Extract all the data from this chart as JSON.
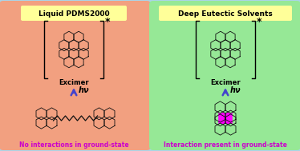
{
  "bg_color": "#aad4e8",
  "left_panel_color": "#f2a080",
  "right_panel_color": "#96e896",
  "title_left": "Liquid PDMS2000",
  "title_right": "Deep Eutectic Solvents",
  "title_box_color": "#ffff99",
  "excimer_label": "Excimer",
  "hv_label": "hν",
  "bottom_left_label": "No interactions in ground-state",
  "bottom_right_label": "Interaction present in ground-state",
  "bottom_text_color": "#cc00cc",
  "arrow_color": "#4444cc",
  "highlight_color": "#ff00ff",
  "struct_color": "#111111",
  "fig_width": 3.74,
  "fig_height": 1.89,
  "dpi": 100
}
